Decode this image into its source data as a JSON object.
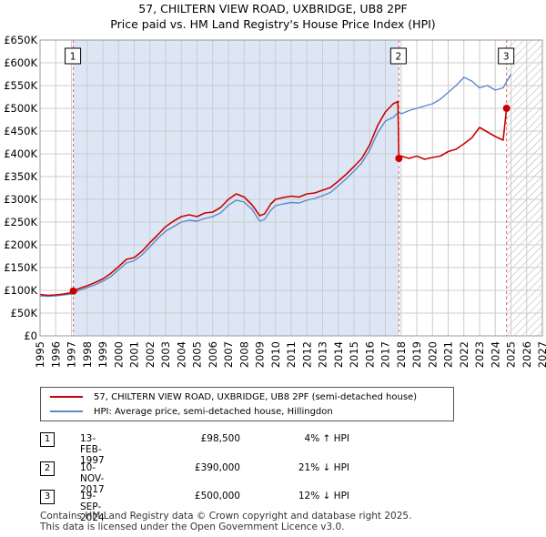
{
  "chart_data": {
    "type": "line",
    "title": "57, CHILTERN VIEW ROAD, UXBRIDGE, UB8 2PF",
    "subtitle": "Price paid vs. HM Land Registry's House Price Index (HPI)",
    "xlabel": "",
    "ylabel": "",
    "xlim": [
      1995,
      2027
    ],
    "ylim": [
      0,
      650000
    ],
    "x_ticks": [
      "1995",
      "1996",
      "1997",
      "1998",
      "1999",
      "2000",
      "2001",
      "2002",
      "2003",
      "2004",
      "2005",
      "2006",
      "2007",
      "2008",
      "2009",
      "2010",
      "2011",
      "2012",
      "2013",
      "2014",
      "2015",
      "2016",
      "2017",
      "2018",
      "2019",
      "2020",
      "2021",
      "2022",
      "2023",
      "2024",
      "2025",
      "2026",
      "2027"
    ],
    "y_ticks": [
      {
        "value": 0,
        "label": "£0"
      },
      {
        "value": 50000,
        "label": "£50K"
      },
      {
        "value": 100000,
        "label": "£100K"
      },
      {
        "value": 150000,
        "label": "£150K"
      },
      {
        "value": 200000,
        "label": "£200K"
      },
      {
        "value": 250000,
        "label": "£250K"
      },
      {
        "value": 300000,
        "label": "£300K"
      },
      {
        "value": 350000,
        "label": "£350K"
      },
      {
        "value": 400000,
        "label": "£400K"
      },
      {
        "value": 450000,
        "label": "£450K"
      },
      {
        "value": 500000,
        "label": "£500K"
      },
      {
        "value": 550000,
        "label": "£550K"
      },
      {
        "value": 600000,
        "label": "£600K"
      },
      {
        "value": 650000,
        "label": "£650K"
      }
    ],
    "grid": true,
    "hatched_from": 2024.72,
    "series": [
      {
        "name": "57, CHILTERN VIEW ROAD, UXBRIDGE, UB8 2PF (semi-detached house)",
        "color": "#cc0000",
        "x": [
          1995.0,
          1995.5,
          1996.0,
          1996.5,
          1997.0,
          1997.12,
          1997.5,
          1998.0,
          1998.5,
          1999.0,
          1999.5,
          2000.0,
          2000.5,
          2001.0,
          2001.5,
          2002.0,
          2002.5,
          2003.0,
          2003.5,
          2004.0,
          2004.5,
          2005.0,
          2005.5,
          2006.0,
          2006.5,
          2007.0,
          2007.5,
          2008.0,
          2008.5,
          2009.0,
          2009.3,
          2009.7,
          2010.0,
          2010.5,
          2011.0,
          2011.5,
          2012.0,
          2012.5,
          2013.0,
          2013.5,
          2014.0,
          2014.5,
          2015.0,
          2015.5,
          2016.0,
          2016.5,
          2017.0,
          2017.5,
          2017.8,
          2017.86,
          2018.0,
          2018.5,
          2019.0,
          2019.5,
          2020.0,
          2020.5,
          2021.0,
          2021.5,
          2022.0,
          2022.5,
          2023.0,
          2023.5,
          2024.0,
          2024.5,
          2024.72
        ],
        "y": [
          91000,
          89000,
          90000,
          92000,
          95000,
          98500,
          104000,
          110000,
          117000,
          125000,
          137000,
          152000,
          168000,
          172000,
          186000,
          205000,
          222000,
          240000,
          252000,
          262000,
          266000,
          262000,
          270000,
          272000,
          282000,
          300000,
          312000,
          305000,
          288000,
          264000,
          268000,
          290000,
          300000,
          304000,
          307000,
          305000,
          312000,
          314000,
          320000,
          326000,
          340000,
          355000,
          372000,
          390000,
          420000,
          462000,
          492000,
          510000,
          515000,
          390000,
          395000,
          390000,
          395000,
          388000,
          392000,
          395000,
          405000,
          410000,
          422000,
          435000,
          458000,
          448000,
          438000,
          430000,
          500000
        ]
      },
      {
        "name": "HPI: Average price, semi-detached house, Hillingdon",
        "color": "#5b8ac8",
        "x": [
          1995.0,
          1995.5,
          1996.0,
          1996.5,
          1997.0,
          1997.5,
          1998.0,
          1998.5,
          1999.0,
          1999.5,
          2000.0,
          2000.5,
          2001.0,
          2001.5,
          2002.0,
          2002.5,
          2003.0,
          2003.5,
          2004.0,
          2004.5,
          2005.0,
          2005.5,
          2006.0,
          2006.5,
          2007.0,
          2007.5,
          2008.0,
          2008.5,
          2009.0,
          2009.3,
          2009.7,
          2010.0,
          2010.5,
          2011.0,
          2011.5,
          2012.0,
          2012.5,
          2013.0,
          2013.5,
          2014.0,
          2014.5,
          2015.0,
          2015.5,
          2016.0,
          2016.5,
          2017.0,
          2017.5,
          2017.86,
          2018.0,
          2018.5,
          2019.0,
          2019.5,
          2020.0,
          2020.5,
          2021.0,
          2021.5,
          2022.0,
          2022.5,
          2023.0,
          2023.5,
          2024.0,
          2024.5,
          2025.0
        ],
        "y": [
          88000,
          87000,
          88000,
          90000,
          92000,
          100000,
          106000,
          112000,
          120000,
          130000,
          145000,
          160000,
          165000,
          178000,
          196000,
          214000,
          230000,
          240000,
          250000,
          254000,
          252000,
          258000,
          262000,
          270000,
          287000,
          298000,
          294000,
          278000,
          252000,
          256000,
          276000,
          286000,
          290000,
          293000,
          292000,
          298000,
          302000,
          308000,
          315000,
          330000,
          345000,
          362000,
          380000,
          408000,
          446000,
          472000,
          480000,
          492000,
          488000,
          495000,
          500000,
          505000,
          510000,
          520000,
          535000,
          550000,
          568000,
          560000,
          545000,
          550000,
          540000,
          545000,
          575000
        ]
      }
    ],
    "sales": [
      {
        "label": "1",
        "x": 1997.12,
        "price": 98500
      },
      {
        "label": "2",
        "x": 2017.86,
        "price": 390000
      },
      {
        "label": "3",
        "x": 2024.72,
        "price": 500000
      }
    ]
  },
  "legend": {
    "property": "57, CHILTERN VIEW ROAD, UXBRIDGE, UB8 2PF (semi-detached house)",
    "hpi": "HPI: Average price, semi-detached house, Hillingdon"
  },
  "sales_table": [
    {
      "num": "1",
      "date": "13-FEB-1997",
      "price": "£98,500",
      "hpi": "4% ↑ HPI"
    },
    {
      "num": "2",
      "date": "10-NOV-2017",
      "price": "£390,000",
      "hpi": "21% ↓ HPI"
    },
    {
      "num": "3",
      "date": "19-SEP-2024",
      "price": "£500,000",
      "hpi": "12% ↓ HPI"
    }
  ],
  "footer": {
    "line1": "Contains HM Land Registry data © Crown copyright and database right 2025.",
    "line2": "This data is licensed under the Open Government Licence v3.0."
  },
  "colors": {
    "property": "#cc0000",
    "hpi": "#5b8ac8",
    "shade": "#dde6f5",
    "vline": "#e06060",
    "grid": "#cccccc"
  }
}
